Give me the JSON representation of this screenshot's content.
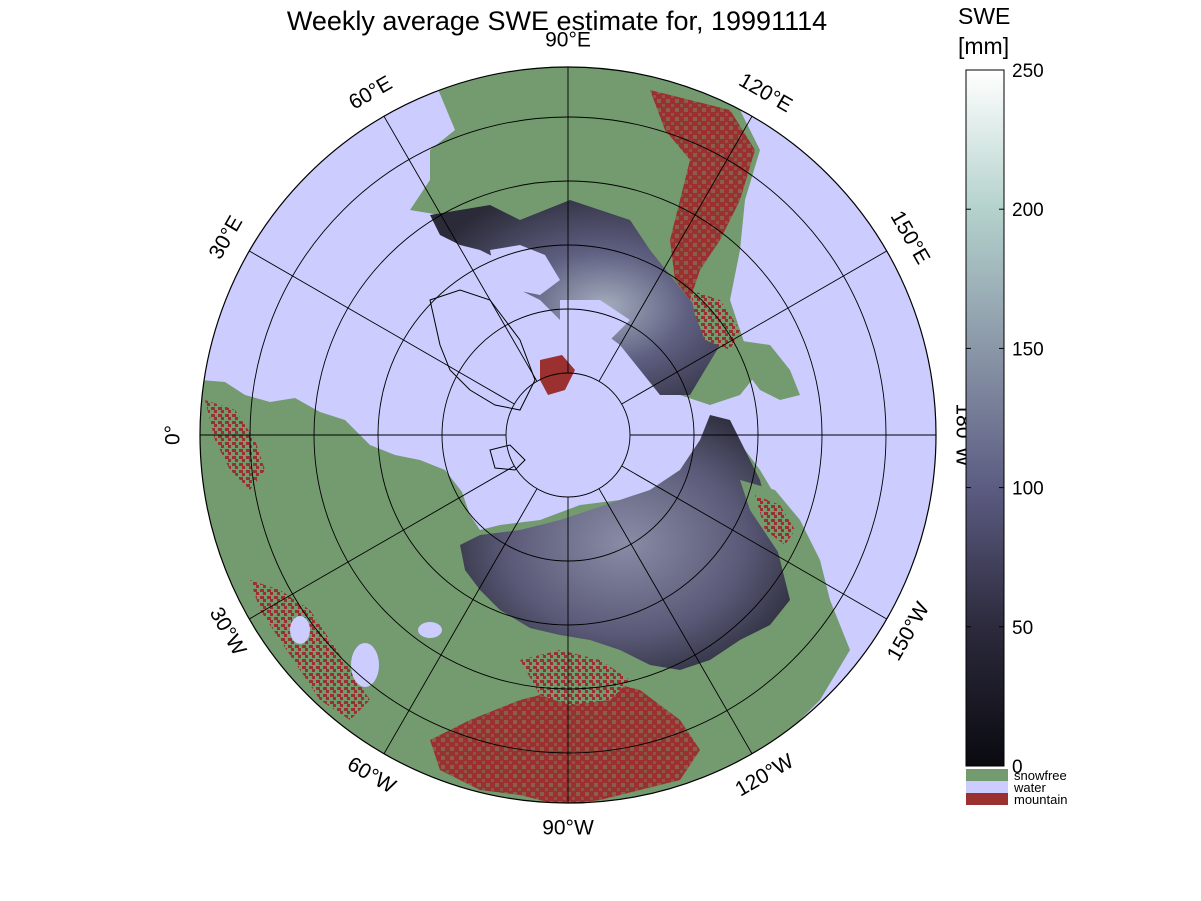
{
  "title": "Weekly average SWE estimate for, 19991114",
  "longitude_labels": [
    {
      "value": 90,
      "text": "90°W"
    },
    {
      "value": 60,
      "text": "60°W"
    },
    {
      "value": 30,
      "text": "30°W"
    },
    {
      "value": 0,
      "text": "0°"
    },
    {
      "value": -30,
      "text": "30°E"
    },
    {
      "value": -60,
      "text": "60°E"
    },
    {
      "value": -90,
      "text": "90°E"
    },
    {
      "value": -120,
      "text": "120°E"
    },
    {
      "value": -150,
      "text": "150°E"
    },
    {
      "value": 180,
      "text": "180°W"
    },
    {
      "value": 150,
      "text": "150°W"
    },
    {
      "value": 120,
      "text": "120°W"
    }
  ],
  "colorbar": {
    "label_line1": "SWE",
    "label_line2": "[mm]",
    "min": 0,
    "max": 250,
    "ticks": [
      "0",
      "50",
      "100",
      "150",
      "200",
      "250"
    ],
    "gradient_colors": [
      "#0a0a10",
      "#2c2a3c",
      "#5c5c82",
      "#8a97a8",
      "#b4d2cc",
      "#ffffff"
    ]
  },
  "legend": [
    {
      "label": "snowfree",
      "color": "#749a6f"
    },
    {
      "label": "water",
      "color": "#ccccff"
    },
    {
      "label": "mountain",
      "color": "#9a3030"
    }
  ],
  "colors": {
    "water": "#ccccff",
    "snowfree": "#749a6f",
    "mountain": "#9a3030",
    "snow_low": "#2c2a3c",
    "snow_mid": "#5c5c82",
    "snow_high": "#8a97a8"
  }
}
